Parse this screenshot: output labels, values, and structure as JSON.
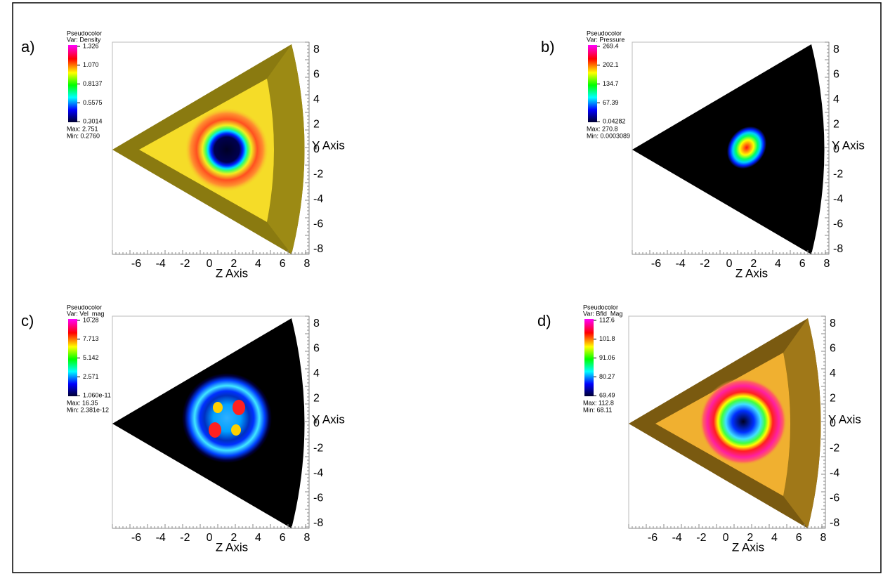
{
  "panels": [
    {
      "label": "a)",
      "legend": {
        "title": "Pseudocolor",
        "var": "Var: Density",
        "ticks": [
          "1.326",
          "1.070",
          "0.8137",
          "0.5575",
          "0.3014"
        ],
        "max": "Max: 2.751",
        "min": "Min: 0.2760"
      },
      "x_axis": {
        "title": "Z Axis",
        "ticks": [
          "-6",
          "-4",
          "-2",
          "0",
          "2",
          "4",
          "6",
          "8"
        ]
      },
      "y_axis": {
        "title": "Y Axis",
        "ticks": [
          "8",
          "6",
          "4",
          "2",
          "0",
          "-2",
          "-4",
          "-6",
          "-8"
        ]
      }
    },
    {
      "label": "b)",
      "legend": {
        "title": "Pseudocolor",
        "var": "Var: Pressure",
        "ticks": [
          "269.4",
          "202.1",
          "134.7",
          "67.39",
          "0.04282"
        ],
        "max": "Max: 270.8",
        "min": "Min: 0.0003089"
      },
      "x_axis": {
        "title": "Z Axis",
        "ticks": [
          "-6",
          "-4",
          "-2",
          "0",
          "2",
          "4",
          "6",
          "8"
        ]
      },
      "y_axis": {
        "title": "Y Axis",
        "ticks": [
          "8",
          "6",
          "4",
          "2",
          "0",
          "-2",
          "-4",
          "-6",
          "-8"
        ]
      }
    },
    {
      "label": "c)",
      "legend": {
        "title": "Pseudocolor",
        "var": "Var: Vel_mag",
        "ticks": [
          "10.28",
          "7.713",
          "5.142",
          "2.571",
          "1.060e-11"
        ],
        "max": "Max: 16.35",
        "min": "Min: 2.381e-12"
      },
      "x_axis": {
        "title": "Z Axis",
        "ticks": [
          "-6",
          "-4",
          "-2",
          "0",
          "2",
          "4",
          "6",
          "8"
        ]
      },
      "y_axis": {
        "title": "Y Axis",
        "ticks": [
          "8",
          "6",
          "4",
          "2",
          "0",
          "-2",
          "-4",
          "-6",
          "-8"
        ]
      }
    },
    {
      "label": "d)",
      "legend": {
        "title": "Pseudocolor",
        "var": "Var: Bfld_Mag",
        "ticks": [
          "112.6",
          "101.8",
          "91.06",
          "80.27",
          "69.49"
        ],
        "max": "Max: 112.8",
        "min": "Min: 68.11"
      },
      "x_axis": {
        "title": "Z Axis",
        "ticks": [
          "-6",
          "-4",
          "-2",
          "0",
          "2",
          "4",
          "6",
          "8"
        ]
      },
      "y_axis": {
        "title": "Y Axis",
        "ticks": [
          "8",
          "6",
          "4",
          "2",
          "0",
          "-2",
          "-4",
          "-6",
          "-8"
        ]
      }
    }
  ]
}
